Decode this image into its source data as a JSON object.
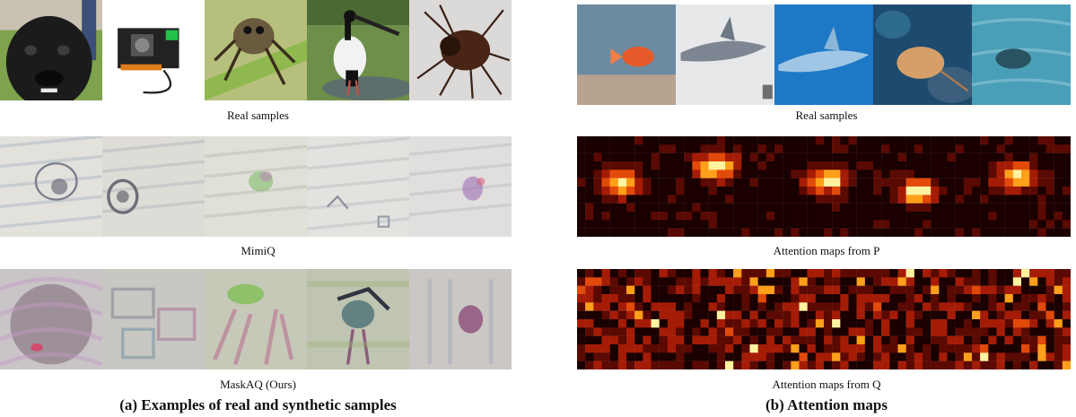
{
  "panel_a": {
    "rows": [
      {
        "label": "Real samples"
      },
      {
        "label": "MimiQ"
      },
      {
        "label": "MaskAQ (Ours)"
      }
    ],
    "title": "(a) Examples of real and synthetic samples"
  },
  "panel_b": {
    "rows": [
      {
        "label": "Real samples"
      },
      {
        "label": "Attention maps from P"
      },
      {
        "label": "Attention maps from Q"
      }
    ],
    "title": "(b) Attention maps"
  }
}
